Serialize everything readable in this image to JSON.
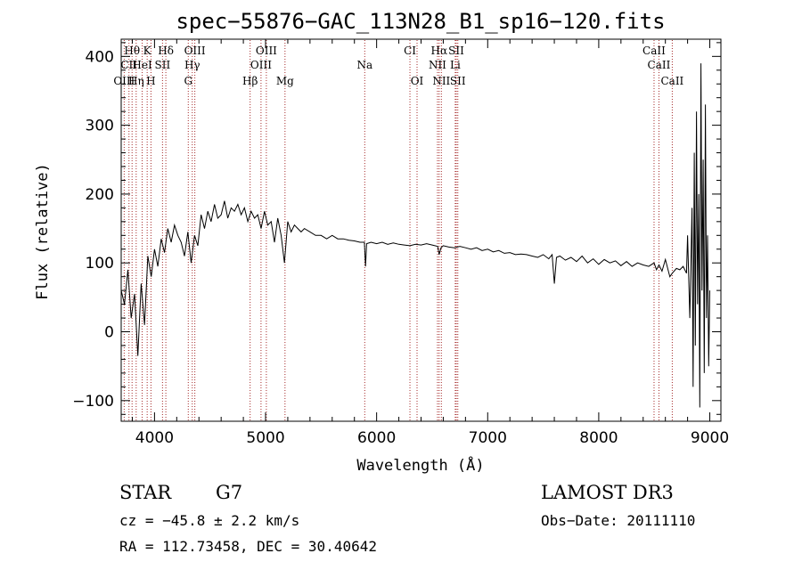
{
  "chart_data": {
    "type": "line",
    "title": "spec−55876−GAC_113N28_B1_sp16−120.fits",
    "xlabel": "Wavelength (Å)",
    "ylabel": "Flux (relative)",
    "xlim": [
      3700,
      9100
    ],
    "ylim": [
      -130,
      425
    ],
    "x_ticks": [
      4000,
      5000,
      6000,
      7000,
      8000,
      9000
    ],
    "y_ticks": [
      -100,
      0,
      100,
      200,
      300,
      400
    ],
    "y_tick_labels": [
      "−100",
      "0",
      "100",
      "200",
      "300",
      "400"
    ],
    "series": [
      {
        "color": "#000000",
        "x": [
          3700,
          3730,
          3760,
          3790,
          3820,
          3850,
          3880,
          3910,
          3940,
          3970,
          4000,
          4030,
          4060,
          4090,
          4120,
          4150,
          4180,
          4210,
          4240,
          4270,
          4300,
          4330,
          4360,
          4390,
          4420,
          4450,
          4480,
          4510,
          4540,
          4570,
          4600,
          4630,
          4660,
          4690,
          4720,
          4750,
          4780,
          4810,
          4840,
          4870,
          4900,
          4930,
          4960,
          4990,
          5020,
          5050,
          5080,
          5110,
          5140,
          5170,
          5200,
          5230,
          5260,
          5290,
          5320,
          5350,
          5400,
          5450,
          5500,
          5550,
          5600,
          5650,
          5700,
          5750,
          5800,
          5850,
          5890,
          5900,
          5910,
          5950,
          6000,
          6050,
          6100,
          6150,
          6200,
          6250,
          6300,
          6350,
          6400,
          6450,
          6500,
          6550,
          6563,
          6580,
          6600,
          6650,
          6700,
          6750,
          6800,
          6850,
          6900,
          6950,
          7000,
          7050,
          7100,
          7150,
          7200,
          7250,
          7300,
          7350,
          7400,
          7450,
          7500,
          7550,
          7580,
          7600,
          7620,
          7650,
          7700,
          7750,
          7800,
          7850,
          7900,
          7950,
          8000,
          8050,
          8100,
          8150,
          8200,
          8250,
          8300,
          8350,
          8400,
          8450,
          8498,
          8520,
          8542,
          8570,
          8600,
          8640,
          8662,
          8700,
          8730,
          8760,
          8790,
          8800,
          8820,
          8840,
          8850,
          8860,
          8870,
          8880,
          8890,
          8900,
          8910,
          8920,
          8930,
          8940,
          8950,
          8960,
          8970,
          8980,
          8990,
          9000
        ],
        "y": [
          60,
          40,
          90,
          20,
          55,
          -35,
          70,
          10,
          110,
          80,
          120,
          95,
          135,
          115,
          150,
          130,
          155,
          140,
          130,
          110,
          145,
          100,
          140,
          125,
          170,
          150,
          175,
          160,
          185,
          165,
          170,
          190,
          165,
          180,
          175,
          185,
          170,
          180,
          160,
          175,
          165,
          170,
          150,
          175,
          155,
          160,
          130,
          165,
          140,
          100,
          160,
          145,
          155,
          150,
          145,
          150,
          145,
          140,
          140,
          135,
          140,
          135,
          135,
          133,
          132,
          130,
          130,
          95,
          128,
          130,
          128,
          130,
          127,
          129,
          127,
          126,
          125,
          127,
          126,
          128,
          126,
          124,
          112,
          122,
          125,
          123,
          122,
          124,
          122,
          120,
          122,
          118,
          120,
          116,
          118,
          114,
          115,
          112,
          113,
          112,
          110,
          108,
          112,
          106,
          112,
          70,
          108,
          110,
          104,
          108,
          102,
          110,
          100,
          106,
          98,
          105,
          100,
          103,
          96,
          102,
          95,
          100,
          97,
          95,
          100,
          90,
          97,
          88,
          105,
          80,
          85,
          92,
          90,
          95,
          85,
          140,
          20,
          180,
          -80,
          260,
          -20,
          320,
          40,
          200,
          -110,
          390,
          60,
          250,
          -60,
          330,
          20,
          140,
          -50,
          60
        ]
      }
    ],
    "line_labels": [
      {
        "label": "Hθ",
        "x": 3798,
        "row": 0
      },
      {
        "label": "K",
        "x": 3934,
        "row": 0
      },
      {
        "label": "Hδ",
        "x": 4102,
        "row": 0
      },
      {
        "label": "OIII",
        "x": 4363,
        "row": 0
      },
      {
        "label": "OIII",
        "x": 5007,
        "row": 0
      },
      {
        "label": "CI",
        "x": 6300,
        "row": 0
      },
      {
        "label": "Hα",
        "x": 6563,
        "row": 0
      },
      {
        "label": "SII",
        "x": 6717,
        "row": 0
      },
      {
        "label": "CaII",
        "x": 8498,
        "row": 0
      },
      {
        "label": "CII",
        "x": 3770,
        "row": 1
      },
      {
        "label": "HeI",
        "x": 3889,
        "row": 1
      },
      {
        "label": "SII",
        "x": 4072,
        "row": 1
      },
      {
        "label": "Hγ",
        "x": 4340,
        "row": 1
      },
      {
        "label": "OIII",
        "x": 4959,
        "row": 1
      },
      {
        "label": "Na",
        "x": 5893,
        "row": 1
      },
      {
        "label": "NII",
        "x": 6548,
        "row": 1
      },
      {
        "label": "Li",
        "x": 6708,
        "row": 1
      },
      {
        "label": "CaII",
        "x": 8542,
        "row": 1
      },
      {
        "label": "OIII",
        "x": 3727,
        "row": 2
      },
      {
        "label": "Hη",
        "x": 3835,
        "row": 2
      },
      {
        "label": "H",
        "x": 3968,
        "row": 2
      },
      {
        "label": "G",
        "x": 4304,
        "row": 2
      },
      {
        "label": "Hβ",
        "x": 4861,
        "row": 2
      },
      {
        "label": "Mg",
        "x": 5175,
        "row": 2
      },
      {
        "label": "OI",
        "x": 6364,
        "row": 2
      },
      {
        "label": "NII",
        "x": 6583,
        "row": 2
      },
      {
        "label": "SII",
        "x": 6731,
        "row": 2
      },
      {
        "label": "CaII",
        "x": 8662,
        "row": 2
      }
    ],
    "grid": false,
    "legend": "none"
  },
  "info": {
    "class_label": "STAR",
    "subclass_label": "G7",
    "survey": "LAMOST DR3",
    "cz": "cz = −45.8 ± 2.2 km/s",
    "obs_date": "Obs−Date: 20111110",
    "coords": "RA = 112.73458, DEC =  30.40642"
  },
  "colors": {
    "axis": "#000000",
    "line_marker": "#a52a2a",
    "spectrum": "#000000"
  }
}
